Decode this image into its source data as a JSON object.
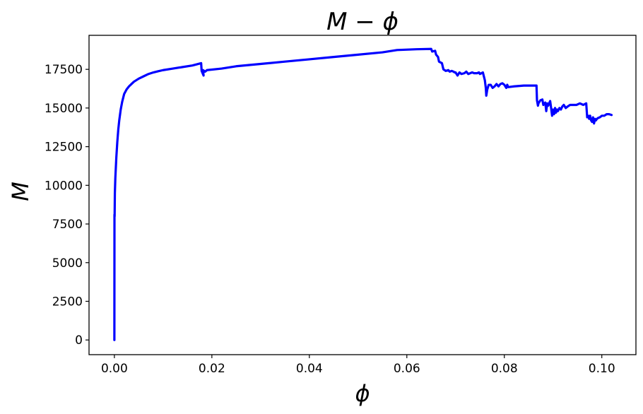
{
  "chart_data": {
    "type": "line",
    "title": "M − ϕ",
    "xlabel": "ϕ",
    "ylabel": "M",
    "xlim": [
      -0.0052,
      0.107
    ],
    "ylim": [
      -950,
      19700
    ],
    "xticks": [
      0.0,
      0.02,
      0.04,
      0.06,
      0.08,
      0.1
    ],
    "xtick_labels": [
      "0.00",
      "0.02",
      "0.04",
      "0.06",
      "0.08",
      "0.10"
    ],
    "yticks": [
      0,
      2500,
      5000,
      7500,
      10000,
      12500,
      15000,
      17500
    ],
    "ytick_labels": [
      "0",
      "2500",
      "5000",
      "7500",
      "10000",
      "12500",
      "15000",
      "17500"
    ],
    "grid": false,
    "series": [
      {
        "color": "#0000ff",
        "x": [
          0.0,
          2e-05,
          5e-05,
          0.0001,
          0.0002,
          0.0004,
          0.0006,
          0.0008,
          0.001,
          0.0013,
          0.0016,
          0.002,
          0.0025,
          0.003,
          0.0035,
          0.004,
          0.005,
          0.006,
          0.007,
          0.008,
          0.009,
          0.01,
          0.012,
          0.014,
          0.016,
          0.0178,
          0.0179,
          0.0183,
          0.0182,
          0.0186,
          0.019,
          0.022,
          0.025,
          0.03,
          0.035,
          0.04,
          0.045,
          0.05,
          0.055,
          0.058,
          0.062,
          0.065,
          0.0652,
          0.0658,
          0.066,
          0.0664,
          0.0666,
          0.0672,
          0.0675,
          0.068,
          0.0685,
          0.0688,
          0.0692,
          0.0696,
          0.0698,
          0.07,
          0.0704,
          0.0708,
          0.0712,
          0.0718,
          0.0722,
          0.0726,
          0.073,
          0.0734,
          0.0738,
          0.0744,
          0.0748,
          0.075,
          0.0756,
          0.076,
          0.0762,
          0.0763,
          0.0765,
          0.0768,
          0.0772,
          0.0776,
          0.078,
          0.0784,
          0.0788,
          0.0792,
          0.0796,
          0.08,
          0.0804,
          0.0806,
          0.0808,
          0.082,
          0.084,
          0.0866,
          0.0867,
          0.0869,
          0.087,
          0.0874,
          0.0878,
          0.088,
          0.0882,
          0.0884,
          0.0886,
          0.0888,
          0.089,
          0.0894,
          0.0896,
          0.0898,
          0.09,
          0.0902,
          0.0904,
          0.0906,
          0.0908,
          0.091,
          0.0913,
          0.0916,
          0.0919,
          0.0922,
          0.0926,
          0.093,
          0.0935,
          0.094,
          0.0948,
          0.0955,
          0.0962,
          0.0968,
          0.097,
          0.0972,
          0.0974,
          0.0976,
          0.0978,
          0.098,
          0.0982,
          0.0984,
          0.0986,
          0.0988,
          0.099,
          0.0992,
          0.0996,
          0.1,
          0.1005,
          0.101,
          0.1015,
          0.102
        ],
        "y": [
          0,
          8100,
          8000,
          9500,
          10500,
          11800,
          12800,
          13600,
          14200,
          14900,
          15400,
          15900,
          16200,
          16400,
          16550,
          16700,
          16900,
          17050,
          17200,
          17300,
          17380,
          17450,
          17550,
          17650,
          17750,
          17900,
          17400,
          17100,
          17450,
          17350,
          17450,
          17550,
          17700,
          17850,
          18000,
          18150,
          18300,
          18450,
          18600,
          18750,
          18800,
          18820,
          18650,
          18700,
          18450,
          18300,
          18000,
          17900,
          17500,
          17400,
          17450,
          17350,
          17400,
          17350,
          17300,
          17300,
          17100,
          17300,
          17200,
          17250,
          17350,
          17200,
          17250,
          17300,
          17250,
          17250,
          17300,
          17200,
          17300,
          16800,
          16300,
          15800,
          16200,
          16500,
          16500,
          16300,
          16400,
          16550,
          16400,
          16550,
          16600,
          16500,
          16300,
          16500,
          16350,
          16400,
          16450,
          16450,
          15500,
          15150,
          15300,
          15500,
          15550,
          15200,
          15300,
          15350,
          14800,
          15300,
          15150,
          15450,
          15000,
          14500,
          14900,
          14600,
          15000,
          14700,
          14900,
          14800,
          15000,
          14900,
          15100,
          15200,
          15000,
          15100,
          15200,
          15200,
          15200,
          15300,
          15200,
          15300,
          14400,
          14500,
          14300,
          14500,
          14200,
          14100,
          14400,
          14000,
          14300,
          14200,
          14300,
          14350,
          14400,
          14500,
          14500,
          14600,
          14600,
          14550
        ]
      }
    ]
  }
}
